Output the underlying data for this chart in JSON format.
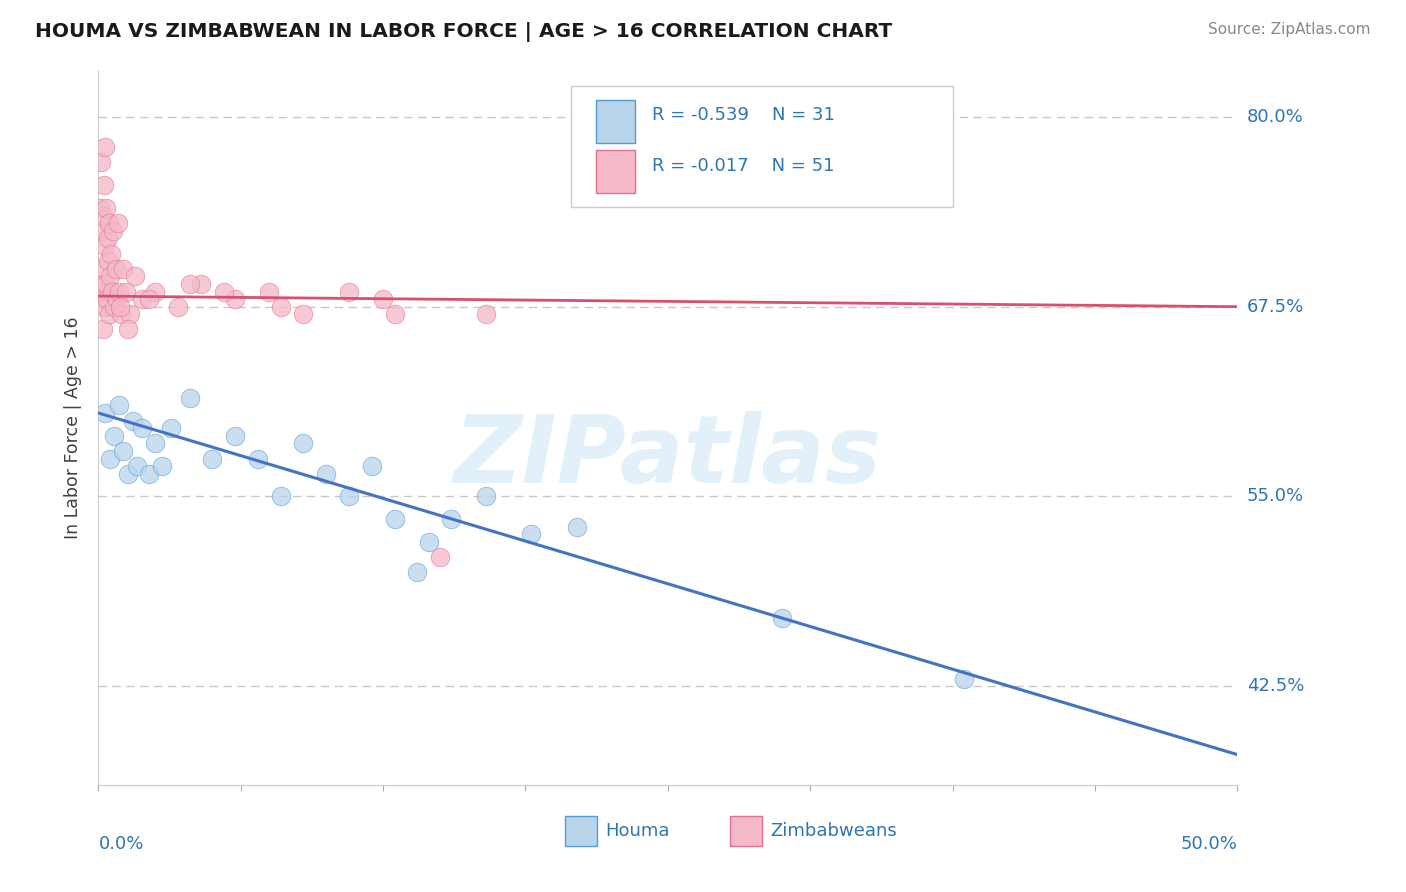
{
  "title": "HOUMA VS ZIMBABWEAN IN LABOR FORCE | AGE > 16 CORRELATION CHART",
  "source": "Source: ZipAtlas.com",
  "ylabel": "In Labor Force | Age > 16",
  "legend_label1": "Houma",
  "legend_label2": "Zimbabweans",
  "R1": -0.539,
  "N1": 31,
  "R2": -0.017,
  "N2": 51,
  "xlim": [
    0.0,
    50.0
  ],
  "ylim": [
    36.0,
    83.0
  ],
  "ytick_vals": [
    42.5,
    55.0,
    67.5,
    80.0
  ],
  "color_houma_dot": "#b8d4ea",
  "color_zimbabwe_dot": "#f4b8c8",
  "color_houma_edge": "#5b9bd5",
  "color_zimbabwe_edge": "#e07090",
  "color_houma_line": "#4472c4",
  "color_zimbabwe_line": "#d94f6e",
  "color_text_blue": "#2e75b6",
  "color_label": "#404040",
  "background_color": "#ffffff",
  "watermark_text": "ZIPatlas",
  "houma_x": [
    0.3,
    0.5,
    0.7,
    0.9,
    1.1,
    1.3,
    1.5,
    1.7,
    1.9,
    2.2,
    2.5,
    2.8,
    3.2,
    4.0,
    5.0,
    6.0,
    7.0,
    8.0,
    9.0,
    10.0,
    11.0,
    12.0,
    13.0,
    14.5,
    15.5,
    17.0,
    19.0,
    21.0,
    14.0,
    30.0,
    38.0
  ],
  "houma_y": [
    60.5,
    57.5,
    59.0,
    61.0,
    58.0,
    56.5,
    60.0,
    57.0,
    59.5,
    56.5,
    58.5,
    57.0,
    59.5,
    61.5,
    57.5,
    59.0,
    57.5,
    55.0,
    58.5,
    56.5,
    55.0,
    57.0,
    53.5,
    52.0,
    53.5,
    55.0,
    52.5,
    53.0,
    50.0,
    47.0,
    43.0
  ],
  "zimbabwe_x": [
    0.05,
    0.08,
    0.1,
    0.12,
    0.15,
    0.18,
    0.2,
    0.22,
    0.25,
    0.28,
    0.3,
    0.33,
    0.35,
    0.38,
    0.4,
    0.43,
    0.45,
    0.48,
    0.5,
    0.55,
    0.6,
    0.65,
    0.7,
    0.75,
    0.8,
    0.85,
    0.9,
    1.0,
    1.1,
    1.2,
    1.4,
    1.6,
    1.9,
    2.5,
    3.5,
    4.5,
    6.0,
    7.5,
    9.0,
    11.0,
    13.0,
    15.0,
    1.3,
    2.2,
    0.95,
    4.0,
    8.0,
    12.5,
    5.5,
    17.0,
    0.28
  ],
  "zimbabwe_y": [
    70.0,
    74.0,
    77.0,
    68.5,
    72.5,
    66.0,
    73.5,
    69.0,
    75.5,
    67.5,
    71.5,
    69.0,
    74.0,
    68.0,
    72.0,
    70.5,
    67.0,
    73.0,
    69.5,
    71.0,
    68.5,
    72.5,
    67.5,
    70.0,
    68.0,
    73.0,
    68.5,
    67.0,
    70.0,
    68.5,
    67.0,
    69.5,
    68.0,
    68.5,
    67.5,
    69.0,
    68.0,
    68.5,
    67.0,
    68.5,
    67.0,
    51.0,
    66.0,
    68.0,
    67.5,
    69.0,
    67.5,
    68.0,
    68.5,
    67.0,
    78.0
  ]
}
